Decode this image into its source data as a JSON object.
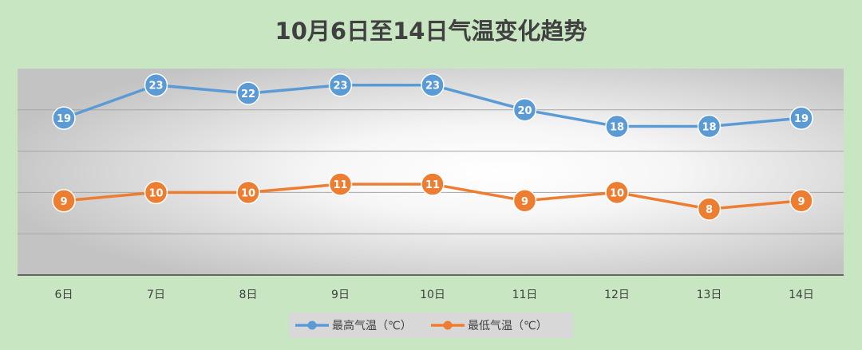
{
  "chart_data": {
    "type": "line",
    "title": "10月6日至14日气温变化趋势",
    "categories": [
      "6日",
      "7日",
      "8日",
      "9日",
      "10日",
      "11日",
      "12日",
      "13日",
      "14日"
    ],
    "series": [
      {
        "name": "最高气温（℃）",
        "values": [
          19,
          23,
          22,
          23,
          23,
          20,
          18,
          18,
          19
        ],
        "color": "#5b9bd5"
      },
      {
        "name": "最低气温（℃）",
        "values": [
          9,
          10,
          10,
          11,
          11,
          9,
          10,
          8,
          9
        ],
        "color": "#ed7d31"
      }
    ],
    "ylim": [
      0,
      25
    ],
    "yticks": [
      5,
      10,
      15,
      20
    ],
    "grid": true,
    "legend_position": "bottom",
    "data_labels": true
  },
  "colors": {
    "background": "#c9e6c3",
    "plot_area": "#ececec",
    "gridline": "#a6a6a6",
    "axis": "#404040",
    "text": "#404040"
  }
}
